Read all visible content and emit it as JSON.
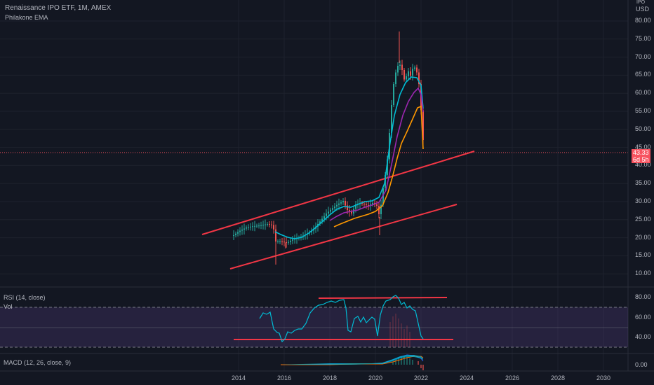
{
  "header": {
    "symbol_line": "Renaissance IPO ETF, 1M, AMEX",
    "indicator_label": "Philakone EMA",
    "currency_label": "USD",
    "currency_prefix": "IPO"
  },
  "price_tag": {
    "price": "43.33",
    "countdown": "6d 5h"
  },
  "price_axis": {
    "ticks": [
      "80.00",
      "75.00",
      "70.00",
      "65.00",
      "60.00",
      "55.00",
      "50.00",
      "45.00",
      "40.00",
      "35.00",
      "30.00",
      "25.00",
      "20.00",
      "15.00",
      "10.00"
    ]
  },
  "rsi_pane": {
    "label": "RSI (14, close)",
    "vol_label": "Vol",
    "ticks": [
      "80.00",
      "60.00",
      "40.00"
    ]
  },
  "macd_pane": {
    "label": "MACD (12, 26, close, 9)",
    "ticks": [
      "0.00"
    ]
  },
  "time_axis": {
    "ticks": [
      "2014",
      "2016",
      "2018",
      "2020",
      "2022",
      "2024",
      "2026",
      "2028",
      "2030"
    ]
  },
  "colors": {
    "background": "#131722",
    "up": "#26a69a",
    "down": "#ef5350",
    "trendline": "#f23645",
    "ema_fast": "#00bcd4",
    "ema_mid": "#9c27b0",
    "ema_slow": "#ff9800",
    "rsi_line": "#00bcd4",
    "rsi_band": "#7e57c2"
  }
}
